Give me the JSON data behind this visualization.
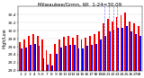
{
  "title": "Milwaukee/Grmn, WI  1-24=30.09",
  "subtitle": "High/Low",
  "days": [
    1,
    2,
    3,
    4,
    5,
    6,
    7,
    8,
    9,
    10,
    11,
    12,
    13,
    14,
    15,
    16,
    17,
    18,
    19,
    20,
    21,
    22,
    23,
    24,
    25,
    26,
    27,
    28
  ],
  "high": [
    29.72,
    29.78,
    29.88,
    29.92,
    29.88,
    29.78,
    29.52,
    29.42,
    29.68,
    29.78,
    29.85,
    29.88,
    29.82,
    29.9,
    29.78,
    29.82,
    29.88,
    29.92,
    29.98,
    30.18,
    30.3,
    30.22,
    30.35,
    30.38,
    30.45,
    30.22,
    30.18,
    30.12
  ],
  "low": [
    29.55,
    29.58,
    29.65,
    29.68,
    29.62,
    29.32,
    29.15,
    29.12,
    29.42,
    29.58,
    29.62,
    29.65,
    29.65,
    29.55,
    29.55,
    29.62,
    29.65,
    29.68,
    29.78,
    29.88,
    29.98,
    30.02,
    30.08,
    30.08,
    30.12,
    29.98,
    29.92,
    29.88
  ],
  "ylim_min": 29.0,
  "ylim_max": 30.6,
  "yticks": [
    29.0,
    29.2,
    29.4,
    29.6,
    29.8,
    30.0,
    30.2,
    30.4
  ],
  "ytick_labels": [
    "29.0",
    "29.2",
    "29.4",
    "29.6",
    "29.8",
    "30.0",
    "30.2",
    "30.4"
  ],
  "bar_width": 0.38,
  "high_color": "#ff0000",
  "low_color": "#0000ff",
  "bg_color": "#ffffff",
  "title_color": "#000000",
  "dashed_day_indices": [
    19,
    20,
    21,
    22
  ],
  "title_fontsize": 4.0,
  "tick_fontsize": 3.2,
  "ylabel_fontsize": 3.5
}
